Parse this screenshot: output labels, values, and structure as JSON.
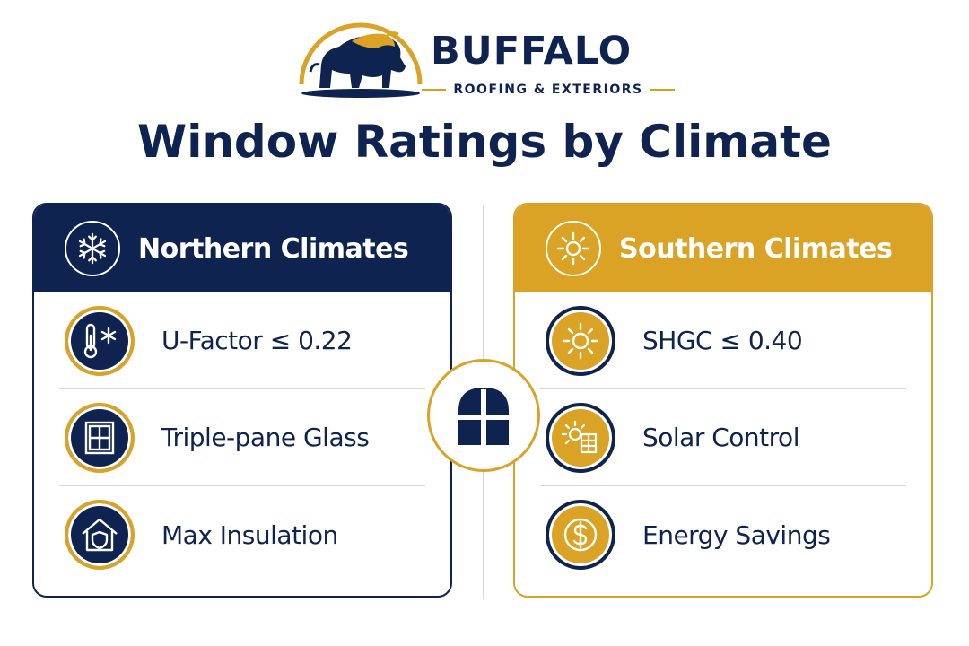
{
  "brand": {
    "name": "BUFFALO",
    "tagline": "ROOFING & EXTERIORS"
  },
  "title": "Window Ratings by Climate",
  "colors": {
    "navy": "#0f2350",
    "gold": "#dba325",
    "divider": "#d8d8d8"
  },
  "center_icon": "arched-window-icon",
  "panels": {
    "north": {
      "title": "Northern Climates",
      "icon": "snowflake-icon",
      "items": [
        {
          "label": "U-Factor ≤ 0.22",
          "icon": "thermometer-snowflake-icon"
        },
        {
          "label": "Triple-pane Glass",
          "icon": "window-pane-icon"
        },
        {
          "label": "Max Insulation",
          "icon": "house-shield-icon"
        }
      ]
    },
    "south": {
      "title": "Southern Climates",
      "icon": "sun-icon",
      "items": [
        {
          "label": "SHGC ≤ 0.40",
          "icon": "sun-icon"
        },
        {
          "label": "Solar Control",
          "icon": "sun-window-icon"
        },
        {
          "label": "Energy Savings",
          "icon": "dollar-coin-icon"
        }
      ]
    }
  }
}
